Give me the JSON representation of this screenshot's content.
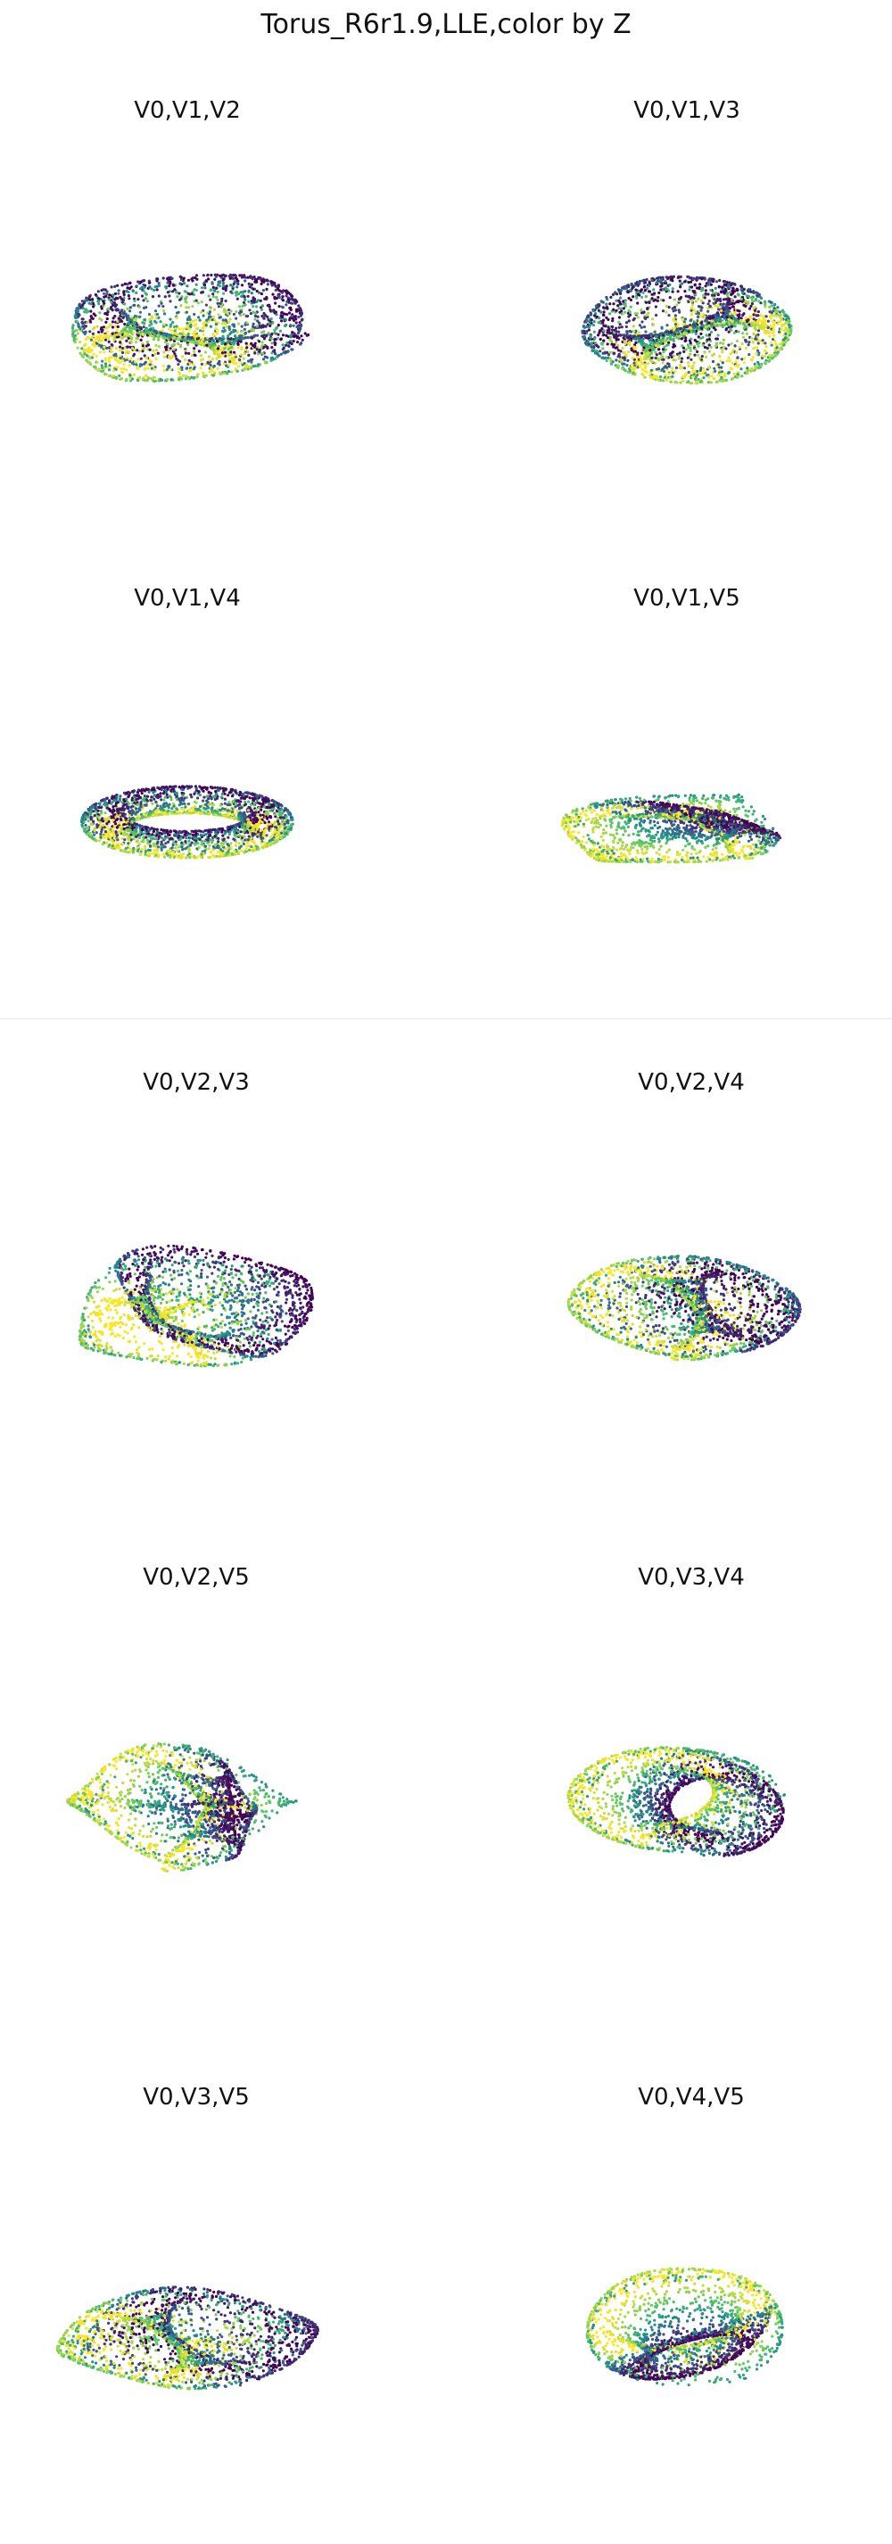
{
  "title": "Torus_R6r1.9,LLE,color by Z",
  "colormap": {
    "name": "viridis",
    "stops": [
      "#440154",
      "#3b528b",
      "#21918c",
      "#5ec962",
      "#fde725"
    ]
  },
  "chart_data": [
    {
      "type": "scatter",
      "title": "V0,V1,V2",
      "axes": "off",
      "grid": false,
      "shape": "twisted-loop"
    },
    {
      "type": "scatter",
      "title": "V0,V1,V3",
      "axes": "off",
      "grid": false,
      "shape": "arch-loop"
    },
    {
      "type": "scatter",
      "title": "V0,V1,V4",
      "axes": "off",
      "grid": false,
      "shape": "ring"
    },
    {
      "type": "scatter",
      "title": "V0,V1,V5",
      "axes": "off",
      "grid": false,
      "shape": "crossed-ring"
    },
    {
      "type": "scatter",
      "title": "V0,V2,V3",
      "axes": "off",
      "grid": false,
      "shape": "folded-ring"
    },
    {
      "type": "scatter",
      "title": "V0,V2,V4",
      "axes": "off",
      "grid": false,
      "shape": "s-fold"
    },
    {
      "type": "scatter",
      "title": "V0,V2,V5",
      "axes": "off",
      "grid": false,
      "shape": "bowtie"
    },
    {
      "type": "scatter",
      "title": "V0,V3,V4",
      "axes": "off",
      "grid": false,
      "shape": "cylinder"
    },
    {
      "type": "scatter",
      "title": "V0,V3,V5",
      "axes": "off",
      "grid": false,
      "shape": "open-fold"
    },
    {
      "type": "scatter",
      "title": "V0,V4,V5",
      "axes": "off",
      "grid": false,
      "shape": "cone"
    }
  ]
}
